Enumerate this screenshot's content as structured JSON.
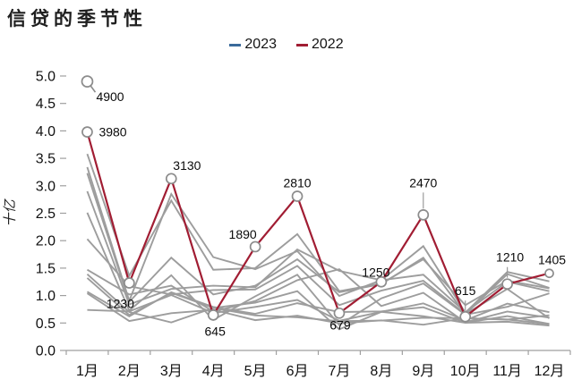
{
  "title": "信贷的季节性",
  "legend": {
    "items": [
      {
        "label": "2023",
        "color": "#3a6a9b"
      },
      {
        "label": "2022",
        "color": "#a11d33"
      }
    ]
  },
  "chart_data": {
    "type": "line",
    "title": "信贷的季节性",
    "ylabel": "十亿",
    "xlabel": "",
    "categories": [
      "1月",
      "2月",
      "3月",
      "4月",
      "5月",
      "6月",
      "7月",
      "8月",
      "9月",
      "10月",
      "11月",
      "12月"
    ],
    "ylim": [
      0,
      5
    ],
    "y_ticks": [
      "0.0",
      "0.5",
      "1.0",
      "1.5",
      "2.0",
      "2.5",
      "3.0",
      "3.5",
      "4.0",
      "4.5",
      "5.0"
    ],
    "value_divisor": 1000,
    "grid": false,
    "legend_position": "top-center",
    "colors": {
      "line_2022": "#a11d33",
      "line_2023": "#3a6a9b",
      "history": "#9d9d9d",
      "marker_stroke": "#8c8c8c",
      "marker_fill": "#ffffff",
      "axis": "#9f9f9f",
      "leader": "#9a9a9a"
    },
    "series": [
      {
        "name": "2023",
        "values": [
          4900,
          null,
          null,
          null,
          null,
          null,
          null,
          null,
          null,
          null,
          null,
          null
        ],
        "point_labels": [
          {
            "i": 0,
            "text": "4900",
            "dx": 10,
            "dy": 22,
            "anchor": "start",
            "r": 6,
            "leader_d": [
              [
                3.5,
                4.5
              ],
              [
                9,
                12
              ]
            ]
          }
        ]
      },
      {
        "name": "2022",
        "values": [
          3980,
          1230,
          3130,
          645,
          1890,
          2810,
          679,
          1250,
          2470,
          615,
          1210,
          1405
        ],
        "point_labels": [
          {
            "i": 0,
            "text": "3980",
            "dx": 13,
            "dy": 5,
            "anchor": "start"
          },
          {
            "i": 1,
            "text": "1230",
            "dx": -10,
            "dy": 28,
            "anchor": "middle"
          },
          {
            "i": 2,
            "text": "3130",
            "dx": 2,
            "dy": -10,
            "anchor": "start"
          },
          {
            "i": 3,
            "text": "645",
            "dx": 2,
            "dy": 23,
            "anchor": "middle"
          },
          {
            "i": 4,
            "text": "1890",
            "dx": -14,
            "dy": -9,
            "anchor": "middle"
          },
          {
            "i": 5,
            "text": "2810",
            "dx": 0,
            "dy": -10,
            "anchor": "middle"
          },
          {
            "i": 6,
            "text": "679",
            "dx": 1,
            "dy": 18,
            "anchor": "middle"
          },
          {
            "i": 7,
            "text": "1250",
            "dx": -6,
            "dy": -6,
            "anchor": "middle"
          },
          {
            "i": 8,
            "text": "2470",
            "dx": 0,
            "dy": -31,
            "anchor": "middle",
            "leader_v": [
              7,
              25
            ]
          },
          {
            "i": 9,
            "text": "615",
            "dx": 0,
            "dy": -24,
            "anchor": "middle",
            "leader_v": [
              7,
              18
            ]
          },
          {
            "i": 10,
            "text": "1210",
            "dx": 3,
            "dy": -25,
            "anchor": "middle",
            "leader_v": [
              7,
              19
            ]
          },
          {
            "i": 11,
            "text": "1405",
            "dx": 3,
            "dy": -10,
            "anchor": "middle",
            "r": 4.5
          }
        ]
      }
    ],
    "background_series": {
      "color": "#9d9d9d",
      "lines": [
        [
          1390,
          700,
          511,
          774,
          639,
          603,
          533,
          545,
          596,
          588,
          564,
          481
        ],
        [
          1040,
          536,
          679,
          740,
          552,
          634,
          493,
          549,
          470,
          587,
          562,
          641
        ],
        [
          738,
          711,
          1010,
          682,
          793,
          920,
          540,
          704,
          623,
          505,
          523,
          454
        ],
        [
          1070,
          620,
          1060,
          793,
          667,
          861,
          700,
          711,
          787,
          506,
          625,
          483
        ],
        [
          1320,
          645,
          1050,
          775,
          871,
          1080,
          385,
          703,
          857,
          548,
          853,
          697
        ],
        [
          1470,
          1020,
          1180,
          708,
          901,
          1280,
          1480,
          810,
          1050,
          514,
          709,
          598
        ],
        [
          2510,
          727,
          1370,
          556,
          986,
          1380,
          464,
          949,
          1220,
          651,
          795,
          1040
        ],
        [
          2030,
          1170,
          1020,
          1100,
          1110,
          1540,
          826,
          1090,
          1270,
          663,
          1120,
          584
        ],
        [
          2900,
          839,
          1120,
          1180,
          1150,
          1840,
          1450,
          1280,
          1380,
          697,
          1250,
          1080
        ],
        [
          3230,
          886,
          1690,
          1020,
          1180,
          1660,
          1060,
          1210,
          1690,
          661,
          1390,
          1140
        ],
        [
          3340,
          906,
          2850,
          1700,
          1480,
          1810,
          993,
          1280,
          1900,
          690,
          1430,
          1260
        ],
        [
          3580,
          1360,
          2730,
          1470,
          1500,
          2120,
          1080,
          1220,
          1660,
          826,
          1270,
          1130
        ]
      ]
    }
  }
}
